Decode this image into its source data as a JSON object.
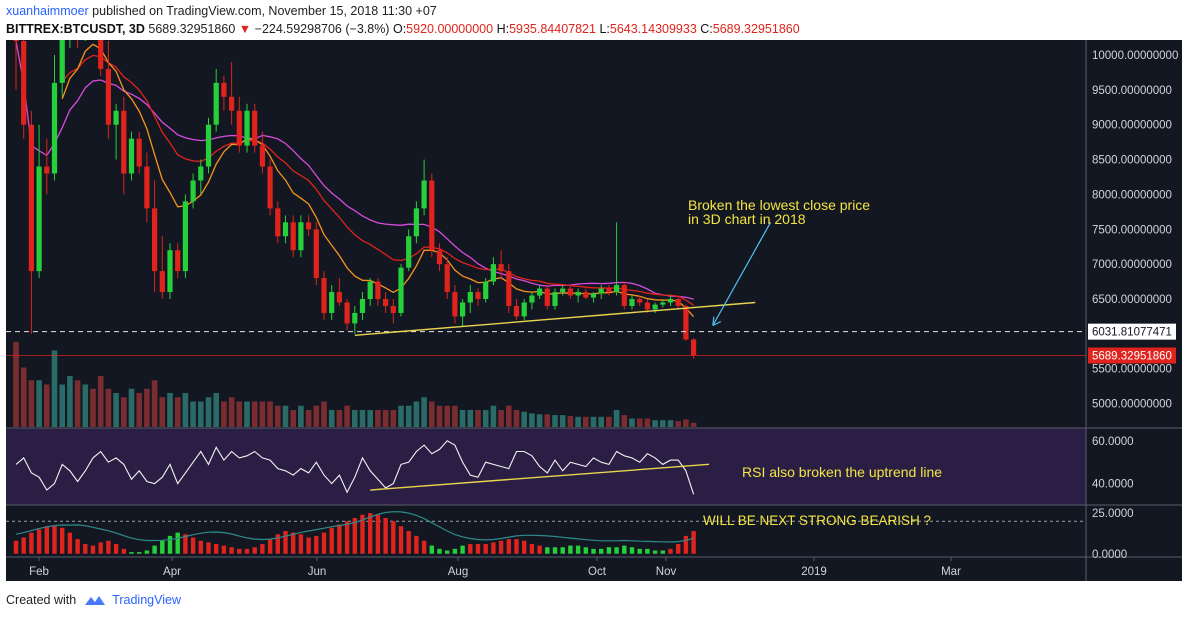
{
  "header": {
    "author": "xuanhaimmoer",
    "published": " published on TradingView.com, November 15, 2018 11:30 +07",
    "symbol": "BITTREX:BTCUSDT, 3D",
    "last": "5689.32951860",
    "change": "−224.59298706 (−3.8%)",
    "o_label": "O:",
    "o_value": "5920.00000000",
    "h_label": "H:",
    "h_value": "5935.84407821",
    "l_label": "L:",
    "l_value": "5643.14309933",
    "c_label": "C:",
    "c_value": "5689.32951860"
  },
  "footer": {
    "created_with": "Created with",
    "brand": "TradingView"
  },
  "colors": {
    "background": "#131722",
    "up": "#26d03a",
    "down": "#e0231c",
    "sma_magenta": "#d84bdc",
    "ema_orange": "#f7941d",
    "ema_red": "#e0231c",
    "trendline": "#e8d44d",
    "annotation": "#f4e542",
    "arrow": "#4fc3f7",
    "rsi_bg": "#2a1e44",
    "hist_line": "#2e8b8b"
  },
  "chart_data": [
    {
      "type": "candlestick",
      "title": "BITTREX:BTCUSDT, 3D",
      "ylim": [
        4650,
        10100
      ],
      "y_ticks": [
        "10000.00000000",
        "9500.00000000",
        "9000.00000000",
        "8500.00000000",
        "8000.00000000",
        "7500.00000000",
        "7000.00000000",
        "6500.00000000",
        "5500.00000000",
        "5000.00000000"
      ],
      "x_ticks": [
        "Feb",
        "Apr",
        "Jun",
        "Aug",
        "Oct",
        "Nov",
        "2019",
        "Mar"
      ],
      "price_labels": [
        {
          "value": 6031.81077471,
          "label": "6031.81077471",
          "style": "dashed-white"
        },
        {
          "value": 5689.3295186,
          "label": "5689.32951860",
          "style": "red-last"
        }
      ],
      "candles_ohlc": [
        [
          11000,
          11500,
          9500,
          10200
        ],
        [
          10200,
          10600,
          8800,
          9000
        ],
        [
          9000,
          9200,
          6000,
          6900
        ],
        [
          6900,
          9000,
          6800,
          8400
        ],
        [
          8400,
          8800,
          8000,
          8300
        ],
        [
          8300,
          10000,
          8200,
          9600
        ],
        [
          9600,
          10500,
          9400,
          10300
        ],
        [
          10300,
          11200,
          10100,
          11000
        ],
        [
          11000,
          11300,
          10100,
          10400
        ],
        [
          10400,
          11500,
          10200,
          11200
        ],
        [
          11200,
          11800,
          10500,
          10600
        ],
        [
          10600,
          11000,
          9700,
          9800
        ],
        [
          9800,
          10200,
          8800,
          9000
        ],
        [
          9000,
          9300,
          8500,
          9200
        ],
        [
          9200,
          9400,
          8000,
          8300
        ],
        [
          8300,
          8900,
          8200,
          8800
        ],
        [
          8800,
          8900,
          8300,
          8400
        ],
        [
          8400,
          8600,
          7600,
          7800
        ],
        [
          7800,
          8200,
          6600,
          6900
        ],
        [
          6900,
          7400,
          6500,
          6600
        ],
        [
          6600,
          7300,
          6500,
          7200
        ],
        [
          7200,
          7300,
          6800,
          6900
        ],
        [
          6900,
          8000,
          6800,
          7900
        ],
        [
          7900,
          8300,
          7800,
          8200
        ],
        [
          8200,
          8500,
          8000,
          8400
        ],
        [
          8400,
          9100,
          8300,
          9000
        ],
        [
          9000,
          9800,
          8900,
          9600
        ],
        [
          9600,
          9700,
          9200,
          9400
        ],
        [
          9400,
          9900,
          9000,
          9200
        ],
        [
          9200,
          9400,
          8600,
          8700
        ],
        [
          8700,
          9300,
          8600,
          9200
        ],
        [
          9200,
          9300,
          8600,
          8700
        ],
        [
          8700,
          8900,
          8300,
          8400
        ],
        [
          8400,
          8500,
          7700,
          7800
        ],
        [
          7800,
          7900,
          7300,
          7400
        ],
        [
          7400,
          7700,
          7300,
          7600
        ],
        [
          7600,
          7700,
          7100,
          7200
        ],
        [
          7200,
          7700,
          7100,
          7600
        ],
        [
          7600,
          7700,
          7400,
          7500
        ],
        [
          7500,
          7600,
          6700,
          6800
        ],
        [
          6800,
          6900,
          6200,
          6300
        ],
        [
          6300,
          6700,
          6200,
          6600
        ],
        [
          6600,
          6800,
          6400,
          6450
        ],
        [
          6450,
          6500,
          6050,
          6150
        ],
        [
          6150,
          6400,
          6000,
          6300
        ],
        [
          6300,
          6600,
          6200,
          6500
        ],
        [
          6500,
          6800,
          6400,
          6750
        ],
        [
          6750,
          6800,
          6400,
          6500
        ],
        [
          6500,
          6600,
          6300,
          6400
        ],
        [
          6400,
          6500,
          6150,
          6300
        ],
        [
          6300,
          7000,
          6250,
          6950
        ],
        [
          6950,
          7500,
          6900,
          7400
        ],
        [
          7400,
          7900,
          7300,
          7800
        ],
        [
          7800,
          8500,
          7700,
          8200
        ],
        [
          8200,
          8300,
          7100,
          7200
        ],
        [
          7200,
          7300,
          6900,
          7000
        ],
        [
          7000,
          7100,
          6500,
          6600
        ],
        [
          6600,
          6700,
          6150,
          6250
        ],
        [
          6250,
          6500,
          6100,
          6450
        ],
        [
          6450,
          6700,
          6300,
          6600
        ],
        [
          6600,
          6650,
          6400,
          6500
        ],
        [
          6500,
          6800,
          6450,
          6750
        ],
        [
          6750,
          7100,
          6700,
          7000
        ],
        [
          7000,
          7200,
          6800,
          6900
        ],
        [
          6900,
          7000,
          6300,
          6400
        ],
        [
          6400,
          6500,
          6200,
          6250
        ],
        [
          6250,
          6500,
          6200,
          6450
        ],
        [
          6450,
          6600,
          6350,
          6550
        ],
        [
          6550,
          6700,
          6500,
          6650
        ],
        [
          6650,
          6700,
          6350,
          6400
        ],
        [
          6400,
          6650,
          6350,
          6600
        ],
        [
          6600,
          6700,
          6550,
          6650
        ],
        [
          6650,
          6700,
          6500,
          6550
        ],
        [
          6550,
          6650,
          6450,
          6600
        ],
        [
          6600,
          6650,
          6500,
          6520
        ],
        [
          6520,
          6600,
          6450,
          6580
        ],
        [
          6580,
          6700,
          6500,
          6650
        ],
        [
          6650,
          6700,
          6550,
          6600
        ],
        [
          6600,
          7600,
          6550,
          6700
        ],
        [
          6700,
          6750,
          6350,
          6400
        ],
        [
          6400,
          6550,
          6350,
          6500
        ],
        [
          6500,
          6550,
          6400,
          6450
        ],
        [
          6450,
          6500,
          6300,
          6350
        ],
        [
          6350,
          6450,
          6300,
          6420
        ],
        [
          6420,
          6500,
          6380,
          6450
        ],
        [
          6450,
          6550,
          6400,
          6500
        ],
        [
          6500,
          6520,
          6350,
          6400
        ],
        [
          6400,
          6420,
          5900,
          5920
        ],
        [
          5920,
          5935.84,
          5643.14,
          5689.33
        ]
      ],
      "volume": [
        1.0,
        0.7,
        0.55,
        0.55,
        0.5,
        0.9,
        0.5,
        0.6,
        0.55,
        0.5,
        0.45,
        0.6,
        0.45,
        0.4,
        0.35,
        0.45,
        0.4,
        0.45,
        0.55,
        0.35,
        0.4,
        0.35,
        0.4,
        0.3,
        0.3,
        0.35,
        0.4,
        0.3,
        0.35,
        0.3,
        0.3,
        0.3,
        0.3,
        0.3,
        0.25,
        0.25,
        0.2,
        0.25,
        0.2,
        0.25,
        0.3,
        0.2,
        0.2,
        0.25,
        0.2,
        0.2,
        0.2,
        0.2,
        0.2,
        0.2,
        0.25,
        0.25,
        0.3,
        0.35,
        0.3,
        0.25,
        0.25,
        0.25,
        0.2,
        0.2,
        0.2,
        0.2,
        0.25,
        0.2,
        0.25,
        0.2,
        0.18,
        0.16,
        0.15,
        0.15,
        0.14,
        0.14,
        0.13,
        0.12,
        0.12,
        0.12,
        0.12,
        0.12,
        0.2,
        0.14,
        0.1,
        0.1,
        0.1,
        0.08,
        0.08,
        0.08,
        0.07,
        0.09,
        0.05
      ]
    },
    {
      "type": "line",
      "indicator": "RSI",
      "ylim": [
        30,
        66
      ],
      "y_ticks": [
        "60.0000",
        "40.0000"
      ],
      "values": [
        49,
        52,
        45,
        43,
        37,
        40,
        49,
        46,
        41,
        46,
        52,
        55,
        50,
        52,
        49,
        42,
        46,
        41,
        40,
        43,
        49,
        40,
        45,
        50,
        55,
        49,
        57,
        51,
        55,
        52,
        53,
        55,
        52,
        51,
        47,
        46,
        44,
        47,
        45,
        50,
        44,
        40,
        44,
        36,
        43,
        52,
        46,
        42,
        38,
        40,
        49,
        50,
        55,
        58,
        54,
        56,
        60,
        58,
        50,
        44,
        43,
        50,
        49,
        48,
        47,
        55,
        55,
        53,
        48,
        45,
        51,
        46,
        50,
        49,
        48,
        52,
        50,
        49,
        55,
        53,
        52,
        50,
        54,
        52,
        49,
        51,
        51,
        46,
        35
      ]
    },
    {
      "type": "bar",
      "indicator": "histogram",
      "ylim": [
        -2,
        30
      ],
      "y_ticks": [
        "25.0000",
        "0.0000"
      ],
      "values": [
        8,
        10,
        13,
        15,
        17,
        17,
        16,
        13,
        9,
        6,
        5,
        7,
        8,
        6,
        3,
        1,
        1,
        2,
        5,
        8,
        11,
        13,
        12,
        10,
        8,
        7,
        6,
        5,
        4,
        3,
        3,
        4,
        6,
        9,
        12,
        14,
        13,
        12,
        10,
        11,
        13,
        16,
        18,
        20,
        22,
        24,
        25,
        24,
        22,
        20,
        17,
        14,
        11,
        8,
        5,
        3,
        2,
        3,
        5,
        6,
        6,
        6,
        7,
        8,
        9,
        9,
        8,
        6,
        5,
        4,
        4,
        4,
        5,
        5,
        4,
        3,
        3,
        4,
        4,
        5,
        4,
        3,
        3,
        2,
        2,
        3,
        6,
        11,
        14
      ],
      "colors": [
        "red",
        "red",
        "red",
        "red",
        "red",
        "red",
        "red",
        "red",
        "red",
        "red",
        "red",
        "red",
        "red",
        "red",
        "red",
        "green",
        "green",
        "green",
        "green",
        "green",
        "green",
        "green",
        "red",
        "red",
        "red",
        "red",
        "red",
        "red",
        "red",
        "red",
        "red",
        "red",
        "red",
        "red",
        "red",
        "red",
        "red",
        "red",
        "red",
        "red",
        "red",
        "red",
        "red",
        "red",
        "red",
        "red",
        "red",
        "red",
        "red",
        "red",
        "red",
        "red",
        "red",
        "red",
        "green",
        "green",
        "green",
        "green",
        "green",
        "red",
        "red",
        "red",
        "red",
        "red",
        "red",
        "red",
        "red",
        "red",
        "red",
        "green",
        "green",
        "green",
        "green",
        "green",
        "green",
        "green",
        "green",
        "green",
        "green",
        "green",
        "green",
        "green",
        "green",
        "green",
        "green",
        "red",
        "red",
        "red",
        "red"
      ]
    }
  ],
  "annotations": {
    "text1_line1": "Broken the lowest close price",
    "text1_line2": "in 3D chart in 2018",
    "text2": "RSI also broken the uptrend line",
    "text3": "WILL BE NEXT STRONG BEARISH ?"
  }
}
